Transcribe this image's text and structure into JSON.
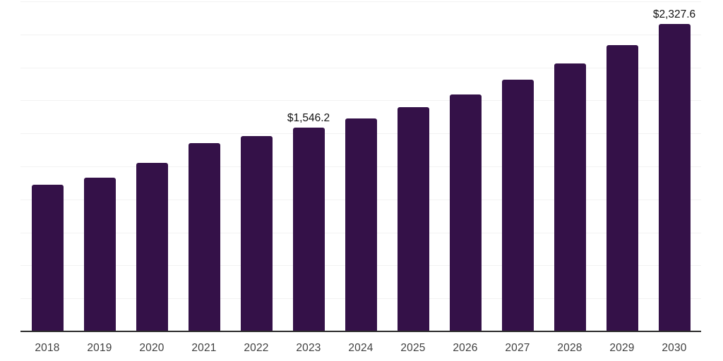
{
  "chart_data": {
    "type": "bar",
    "title": "",
    "xlabel": "",
    "ylabel": "",
    "categories": [
      "2018",
      "2019",
      "2020",
      "2021",
      "2022",
      "2023",
      "2024",
      "2025",
      "2026",
      "2027",
      "2028",
      "2029",
      "2030"
    ],
    "values": [
      1109,
      1167,
      1279,
      1428,
      1482,
      1546.2,
      1615,
      1700,
      1796,
      1908,
      2031,
      2169,
      2327.6
    ],
    "value_labels": [
      {
        "category": "2023",
        "text": "$1,546.2"
      },
      {
        "category": "2030",
        "text": "$2,327.6"
      }
    ],
    "ylim": [
      0,
      2500
    ],
    "gridline_interval": 250,
    "grid": "horizontal",
    "y_tick_labels_visible": false,
    "legend": "none",
    "colors": {
      "bar": "#341148",
      "background": "#ffffff",
      "gridline": "#f2f2f2",
      "axis_line": "#2b2b2b",
      "tick_label": "#3f3f3f",
      "value_label": "#111111"
    }
  }
}
